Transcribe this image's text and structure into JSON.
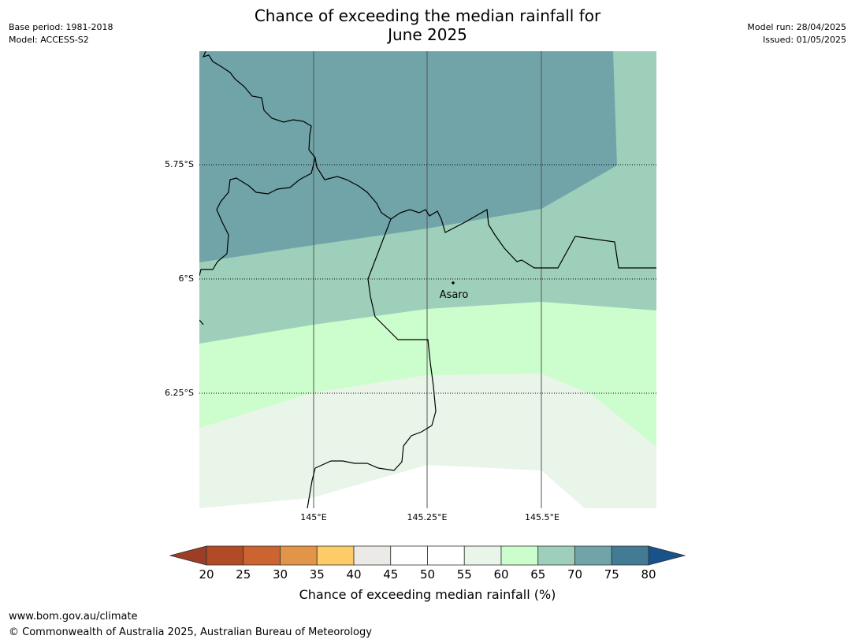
{
  "header": {
    "title_line1": "Chance of exceeding the median rainfall for",
    "title_line2": "June 2025",
    "base_period": "Base period: 1981-2018",
    "model": "Model: ACCESS-S2",
    "model_run": "Model run: 28/04/2025",
    "issued": "Issued: 01/05/2025"
  },
  "map": {
    "lat_labels": [
      "5.75°S",
      "6°S",
      "6.25°S"
    ],
    "lon_labels": [
      "145°E",
      "145.25°E",
      "145.5°E"
    ],
    "place": "Asaro",
    "category_colors": {
      "55-60": "#e9f5e8",
      "60-65": "#ccfdcc",
      "65-70": "#9ecfba",
      "70-75": "#70a4a8"
    }
  },
  "colorbar": {
    "label": "Chance of exceeding median rainfall (%)",
    "ticks": [
      "20",
      "25",
      "30",
      "35",
      "40",
      "45",
      "50",
      "55",
      "60",
      "65",
      "70",
      "75",
      "80"
    ],
    "under_color": "#9c3d25",
    "over_color": "#17528a",
    "colors": [
      "#b04b26",
      "#cc6432",
      "#e29548",
      "#fdcb67",
      "#ebeae6",
      "#ffffff",
      "#ffffff",
      "#e9f5e8",
      "#ccfdcc",
      "#9ecfba",
      "#70a4a8",
      "#437a94"
    ]
  },
  "footer": {
    "url": "www.bom.gov.au/climate",
    "copyright": "© Commonwealth of Australia 2025, Australian Bureau of Meteorology"
  }
}
